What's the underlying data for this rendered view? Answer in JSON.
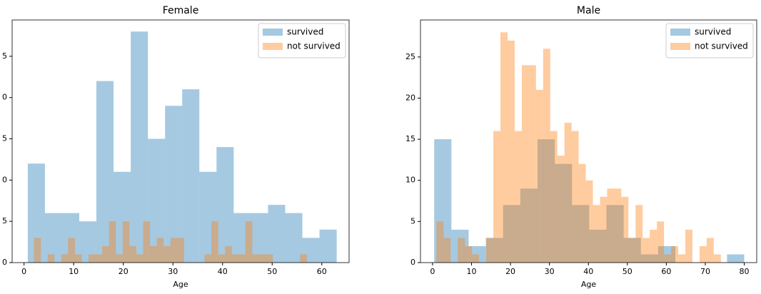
{
  "chart_data": [
    {
      "type": "histogram",
      "title": "Female",
      "x_label": "Age",
      "xlim": [
        -2.4,
        65.5
      ],
      "ylim": [
        0,
        29.4
      ],
      "xticks": [
        0,
        10,
        20,
        30,
        40,
        50,
        60
      ],
      "yticks": [
        0,
        5,
        {
          "value": 10,
          "label": "0"
        },
        {
          "value": 15,
          "label": "5"
        },
        {
          "value": 20,
          "label": "0"
        },
        {
          "value": 25,
          "label": "5"
        }
      ],
      "legend": "upper right",
      "opacity": 0.4,
      "series": [
        {
          "name": "survived",
          "color": "#1f77b4",
          "bins": [
            0.75,
            4.21,
            7.67,
            11.13,
            14.58,
            18.04,
            21.5,
            24.96,
            28.42,
            31.87,
            35.33,
            38.79,
            42.25,
            45.71,
            49.17,
            52.62,
            56.08,
            59.54,
            63
          ],
          "values": [
            12,
            6,
            6,
            5,
            22,
            11,
            28,
            15,
            19,
            21,
            11,
            14,
            6,
            6,
            7,
            6,
            3,
            4
          ]
        },
        {
          "name": "not survived",
          "color": "#ff7f0e",
          "bins": [
            2,
            3.375,
            4.75,
            6.125,
            7.5,
            8.875,
            10.25,
            11.625,
            13,
            14.375,
            15.75,
            17.125,
            18.5,
            19.875,
            21.25,
            22.625,
            24,
            25.375,
            26.75,
            28.125,
            29.5,
            30.875,
            32.25,
            33.625,
            35,
            36.375,
            37.75,
            39.125,
            40.5,
            41.875,
            43.25,
            44.625,
            46,
            47.375,
            48.75,
            50.125,
            51.5,
            52.875,
            54.25,
            55.625,
            57
          ],
          "values": [
            3,
            0,
            1,
            0,
            1,
            3,
            1,
            0,
            1,
            1,
            2,
            5,
            1,
            5,
            2,
            1,
            5,
            2,
            3,
            2,
            3,
            3,
            0,
            0,
            0,
            1,
            5,
            1,
            2,
            1,
            1,
            5,
            1,
            1,
            1,
            0,
            0,
            0,
            0,
            1
          ]
        }
      ]
    },
    {
      "type": "histogram",
      "title": "Male",
      "x_label": "Age",
      "xlim": [
        -3.1,
        83.2
      ],
      "ylim": [
        0,
        29.5
      ],
      "xticks": [
        0,
        10,
        20,
        30,
        40,
        50,
        60,
        70,
        80
      ],
      "yticks": [
        0,
        5,
        10,
        15,
        20,
        25
      ],
      "legend": "upper right",
      "opacity": 0.4,
      "series": [
        {
          "name": "survived",
          "color": "#1f77b4",
          "bins": [
            0.42,
            4.84,
            9.26,
            13.68,
            18.1,
            22.53,
            26.95,
            31.37,
            35.79,
            40.21,
            44.63,
            49.05,
            53.47,
            57.89,
            62.32,
            66.74,
            71.16,
            75.58,
            80
          ],
          "values": [
            15,
            4,
            2,
            3,
            7,
            9,
            15,
            12,
            7,
            4,
            7,
            3,
            1,
            2,
            0,
            0,
            0,
            1
          ]
        },
        {
          "name": "not survived",
          "color": "#ff7f0e",
          "bins": [
            1,
            2.825,
            4.65,
            6.475,
            8.3,
            10.125,
            11.95,
            13.775,
            15.6,
            17.425,
            19.25,
            21.075,
            22.9,
            24.725,
            26.55,
            28.375,
            30.2,
            32.025,
            33.85,
            35.675,
            37.5,
            39.325,
            41.15,
            42.975,
            44.8,
            46.625,
            48.45,
            50.275,
            52.1,
            53.925,
            55.75,
            57.575,
            59.4,
            61.225,
            63.05,
            64.875,
            66.7,
            68.525,
            70.35,
            72.175,
            74
          ],
          "values": [
            5,
            3,
            0,
            3,
            2,
            1,
            0,
            3,
            16,
            28,
            27,
            16,
            24,
            24,
            21,
            26,
            16,
            13,
            17,
            16,
            12,
            10,
            7,
            8,
            9,
            9,
            8,
            3,
            7,
            3,
            4,
            5,
            1,
            2,
            1,
            4,
            0,
            2,
            3,
            1
          ]
        }
      ]
    }
  ]
}
